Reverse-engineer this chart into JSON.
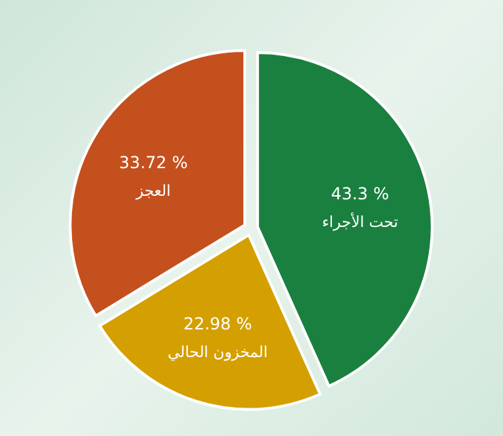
{
  "chart_data": {
    "type": "pie",
    "categories": [
      "تحت الأجراء",
      "المخزون الحالي",
      "العجز"
    ],
    "values": [
      43.3,
      22.98,
      33.72
    ],
    "colors": [
      "#1a8040",
      "#d49f00",
      "#c4501e"
    ],
    "value_labels": [
      "43.3 %",
      "22.98 %",
      "33.72 %"
    ]
  }
}
